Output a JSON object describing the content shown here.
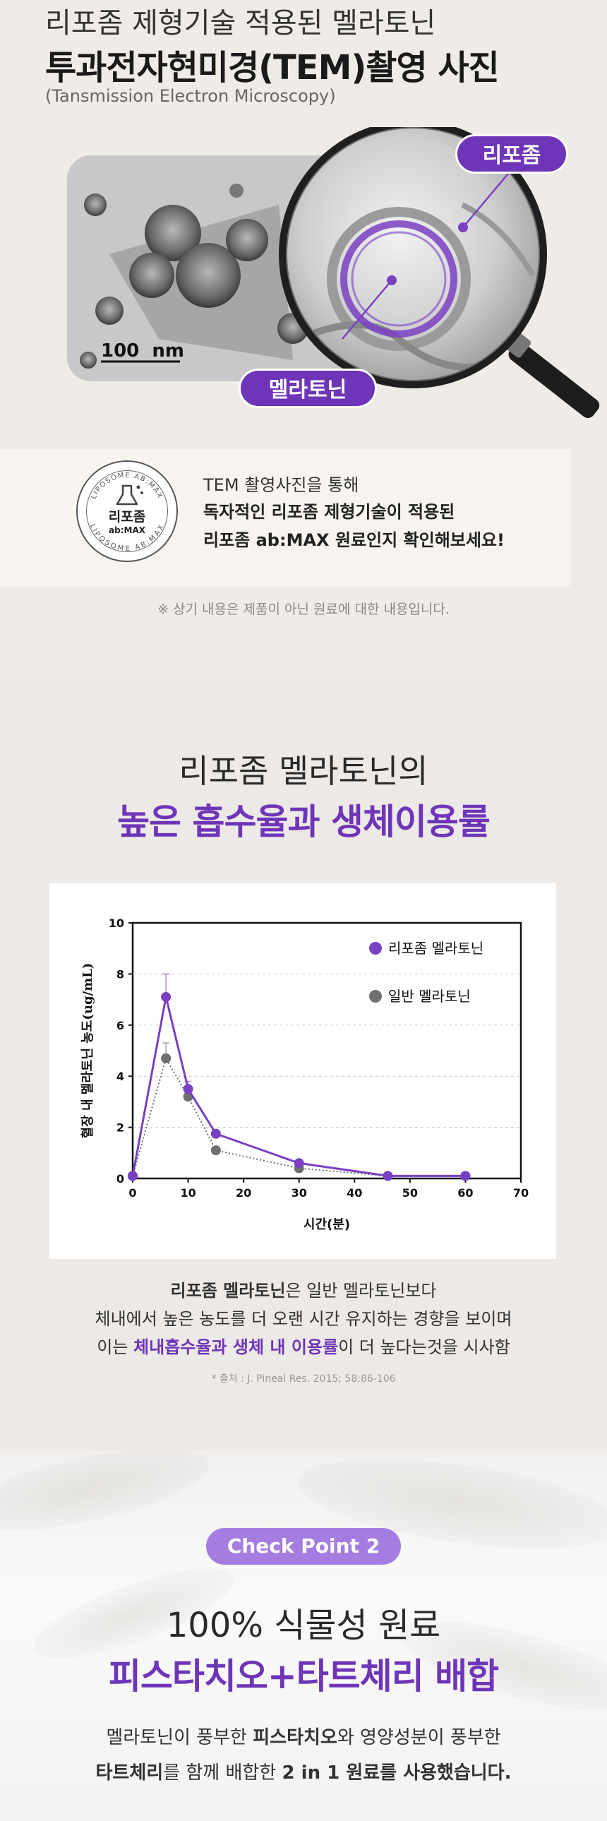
{
  "tem": {
    "title1": "리포좀 제형기술 적용된 멜라토닌",
    "title2": "투과전자현미경(TEM)촬영 사진",
    "subtitle": "(Tansmission Electron Microscopy)",
    "scale_bar": "100  nm",
    "label_liposome": "리포좀",
    "label_melatonin": "멜라토닌",
    "badge_top": "LIPOSOME AB:MAX",
    "badge_bottom": "LIPOSOME AB:MAX",
    "badge_name": "리포좀",
    "badge_sub": "ab:MAX",
    "desc_line1": "TEM 촬영사진을 통해",
    "desc_line2": "독자적인 리포좀 제형기술이 적용된",
    "desc_line3": "리포좀 ab:MAX 원료인지 확인해보세요!",
    "note": "※ 상기 내용은 제품이 아닌 원료에 대한 내용입니다."
  },
  "absorption": {
    "heading1": "리포좀 멜라토닌의",
    "heading2": "높은 흡수율과 생체이용률",
    "desc1_bold": "리포좀 멜라토닌",
    "desc1_rest": "은 일반 멜라토닌보다",
    "desc2": "체내에서 높은 농도를 더 오랜 시간 유지하는 경향을 보이며",
    "desc3_pre": "이는 ",
    "desc3_em": "체내흡수율과 생체 내 이용률",
    "desc3_post": "이 더 높다는것을 시사함",
    "source": "* 출처 : J. Pineal Res. 2015; 58:86-106"
  },
  "chart_data": {
    "type": "line",
    "title": "",
    "xlabel": "시간(분)",
    "ylabel": "혈장 내 멜라토닌 농도(ug/mL)",
    "xlim": [
      0,
      70
    ],
    "ylim": [
      0,
      10
    ],
    "x_ticks": [
      0,
      10,
      20,
      30,
      40,
      50,
      60,
      70
    ],
    "y_ticks": [
      0,
      2,
      4,
      6,
      8,
      10
    ],
    "grid": "horizontal dashed",
    "legend_position": "top-right",
    "series": [
      {
        "name": "리포좀 멜라토닌",
        "color": "#7a3fc2",
        "style": "solid",
        "x": [
          0,
          6,
          10,
          15,
          30,
          46,
          60
        ],
        "y": [
          0.1,
          7.1,
          3.5,
          1.75,
          0.6,
          0.1,
          0.1
        ],
        "error": [
          0,
          0.9,
          0.3,
          0.1,
          0.1,
          0,
          0
        ]
      },
      {
        "name": "일반 멜라토닌",
        "color": "#6f6f6f",
        "style": "dotted",
        "x": [
          0,
          6,
          10,
          15,
          30,
          46,
          60
        ],
        "y": [
          0.1,
          4.7,
          3.2,
          1.1,
          0.4,
          0.1,
          0.1
        ],
        "error": [
          0,
          0.6,
          0.2,
          0.1,
          0.05,
          0,
          0
        ]
      }
    ]
  },
  "checkpoint": {
    "pill": "Check Point 2",
    "heading1": "100% 식물성 원료",
    "heading2": "피스타치오+타트체리 배합",
    "d1_pre": "멜라토닌이 풍부한 ",
    "d1_b": "피스타치오",
    "d1_post": "와 영양성분이 풍부한",
    "d2_b1": "타트체리",
    "d2_mid": "를 함께 배합한 ",
    "d2_b2": "2 in 1 원료를 사용했습니다."
  },
  "colors": {
    "accent": "#6e35b8",
    "pill": "#a57de0",
    "gray_series": "#6f6f6f"
  },
  "icons": {
    "magnifier": "magnifier-icon",
    "flask": "flask-icon"
  }
}
